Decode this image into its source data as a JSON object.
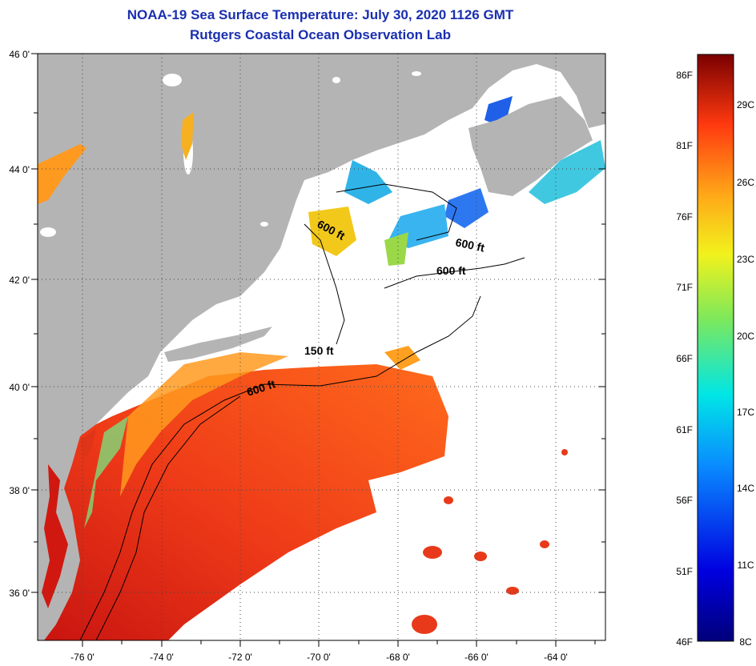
{
  "header": {
    "title": "NOAA-19 Sea Surface Temperature:  July 30, 2020 1126 GMT",
    "subtitle": "Rutgers Coastal Ocean Observation Lab"
  },
  "map": {
    "lon_labels": [
      "-76 0'",
      "-74 0'",
      "-72 0'",
      "-70 0'",
      "-68 0'",
      "-66 0'",
      "-64 0'"
    ],
    "lat_labels": [
      "46 0'",
      "44 0'",
      "42 0'",
      "40 0'",
      "38 0'",
      "36 0'"
    ],
    "contour_labels": [
      "600 ft",
      "600 ft",
      "600 ft",
      "150 ft",
      "600 ft"
    ],
    "colors": {
      "land": "#b4b4b4",
      "cloud": "#ffffff",
      "warm": "#e8301c",
      "cool": "#2a6cf0"
    }
  },
  "colorbar": {
    "fahrenheit": [
      "86F",
      "81F",
      "76F",
      "71F",
      "66F",
      "61F",
      "56F",
      "51F",
      "46F"
    ],
    "celsius": [
      "29C",
      "26C",
      "23C",
      "20C",
      "17C",
      "14C",
      "11C",
      "8C"
    ]
  }
}
